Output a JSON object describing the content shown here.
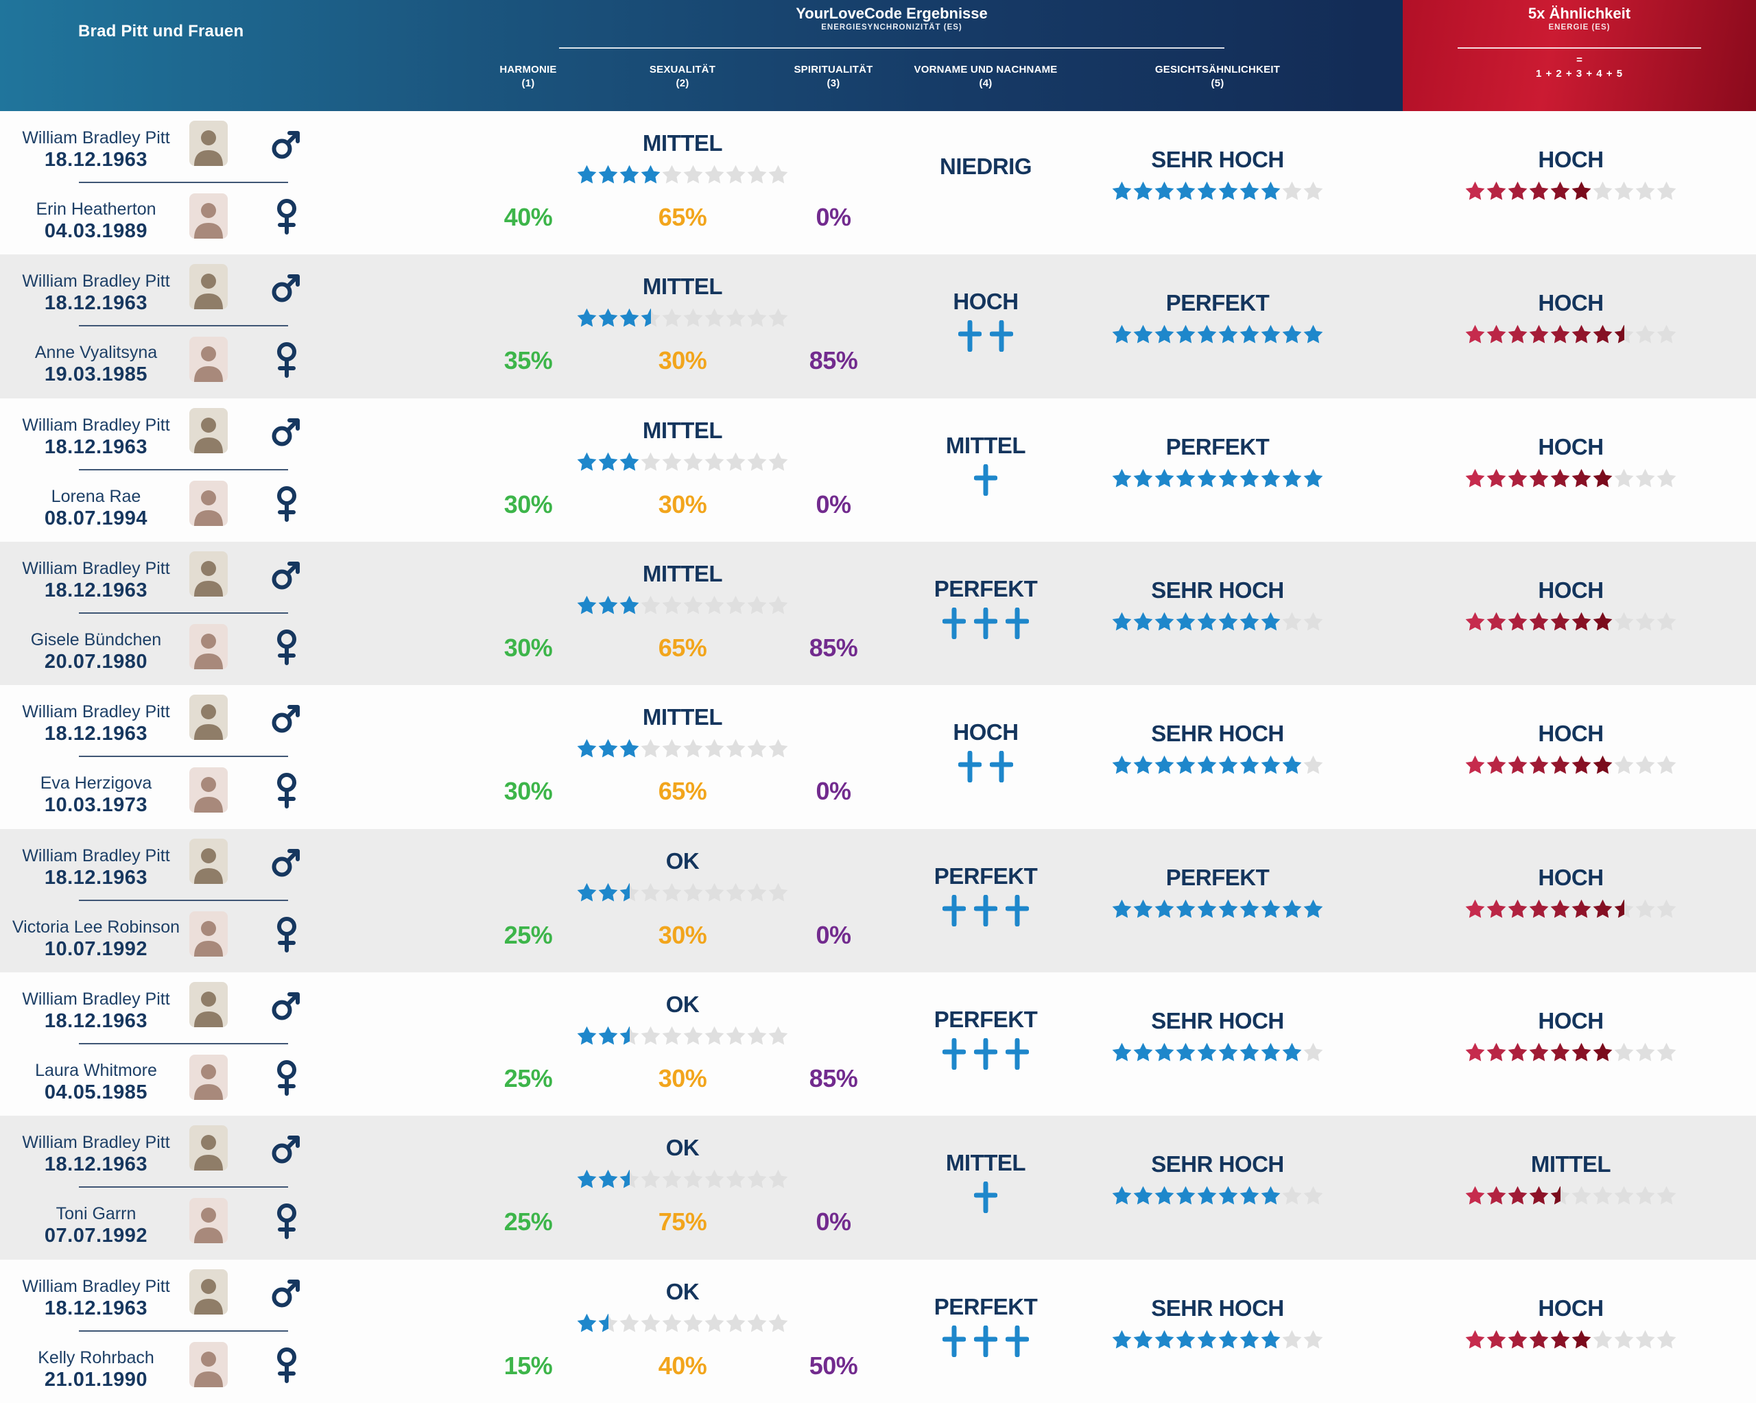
{
  "header": {
    "left_title": "Brad Pitt und Frauen",
    "center": {
      "title": "YourLoveCode Ergebnisse",
      "subtitle": "ENERGIESYNCHRONIZITÄT (ES)"
    },
    "columns": [
      {
        "label": "HARMONIE",
        "num": "(1)"
      },
      {
        "label": "SEXUALITÄT",
        "num": "(2)"
      },
      {
        "label": "SPIRITUALITÄT",
        "num": "(3)"
      },
      {
        "label": "VORNAME UND NACHNAME",
        "num": "(4)"
      },
      {
        "label": "GESICHTSÄHNLICHKEIT",
        "num": "(5)"
      }
    ],
    "right": {
      "title": "5x Ähnlichkeit",
      "subtitle": "ENERGIE (ES)",
      "equals": "=",
      "formula": "1 + 2 + 3 + 4 + 5"
    }
  },
  "male": {
    "name": "William Bradley Pitt",
    "birthdate": "18.12.1963"
  },
  "colors": {
    "navy_text": "#16375f",
    "label_navy": "#14355d",
    "green": "#3db54a",
    "orange": "#f2a51c",
    "purple": "#722b8e",
    "blue_star": "#1e87cb",
    "gray_star": "#dfdfdf",
    "red_star_start": "#c62b4d",
    "red_star_end": "#7a0b1c",
    "row_alt": "#ececec",
    "header_navy": "#132c56",
    "header_red": "#c11a30"
  },
  "chart_data": {
    "type": "table",
    "title": "Brad Pitt und Frauen — YourLoveCode Ergebnisse",
    "stars_max": 10,
    "rows": [
      {
        "female": {
          "name": "Erin Heatherton",
          "birthdate": "04.03.1989"
        },
        "harmonie_pct": "40%",
        "sexualitaet": {
          "label": "MITTEL",
          "stars": 4,
          "pct": "65%"
        },
        "spiritualitaet_pct": "0%",
        "vorname": {
          "label": "NIEDRIG",
          "plus": 0
        },
        "gesicht": {
          "label": "SEHR HOCH",
          "stars": 8
        },
        "aehnlichkeit": {
          "label": "HOCH",
          "stars": 6
        }
      },
      {
        "female": {
          "name": "Anne Vyalitsyna",
          "birthdate": "19.03.1985"
        },
        "harmonie_pct": "35%",
        "sexualitaet": {
          "label": "MITTEL",
          "stars": 3.5,
          "pct": "30%"
        },
        "spiritualitaet_pct": "85%",
        "vorname": {
          "label": "HOCH",
          "plus": 2
        },
        "gesicht": {
          "label": "PERFEKT",
          "stars": 10
        },
        "aehnlichkeit": {
          "label": "HOCH",
          "stars": 7.5
        }
      },
      {
        "female": {
          "name": "Lorena Rae",
          "birthdate": "08.07.1994"
        },
        "harmonie_pct": "30%",
        "sexualitaet": {
          "label": "MITTEL",
          "stars": 3,
          "pct": "30%"
        },
        "spiritualitaet_pct": "0%",
        "vorname": {
          "label": "MITTEL",
          "plus": 1
        },
        "gesicht": {
          "label": "PERFEKT",
          "stars": 10
        },
        "aehnlichkeit": {
          "label": "HOCH",
          "stars": 7
        }
      },
      {
        "female": {
          "name": "Gisele Bündchen",
          "birthdate": "20.07.1980"
        },
        "harmonie_pct": "30%",
        "sexualitaet": {
          "label": "MITTEL",
          "stars": 3,
          "pct": "65%"
        },
        "spiritualitaet_pct": "85%",
        "vorname": {
          "label": "PERFEKT",
          "plus": 3
        },
        "gesicht": {
          "label": "SEHR HOCH",
          "stars": 8
        },
        "aehnlichkeit": {
          "label": "HOCH",
          "stars": 7
        }
      },
      {
        "female": {
          "name": "Eva Herzigova",
          "birthdate": "10.03.1973"
        },
        "harmonie_pct": "30%",
        "sexualitaet": {
          "label": "MITTEL",
          "stars": 3,
          "pct": "65%"
        },
        "spiritualitaet_pct": "0%",
        "vorname": {
          "label": "HOCH",
          "plus": 2
        },
        "gesicht": {
          "label": "SEHR HOCH",
          "stars": 9
        },
        "aehnlichkeit": {
          "label": "HOCH",
          "stars": 7
        }
      },
      {
        "female": {
          "name": "Victoria Lee Robinson",
          "birthdate": "10.07.1992"
        },
        "harmonie_pct": "25%",
        "sexualitaet": {
          "label": "OK",
          "stars": 2.5,
          "pct": "30%"
        },
        "spiritualitaet_pct": "0%",
        "vorname": {
          "label": "PERFEKT",
          "plus": 3
        },
        "gesicht": {
          "label": "PERFEKT",
          "stars": 10
        },
        "aehnlichkeit": {
          "label": "HOCH",
          "stars": 7.5
        }
      },
      {
        "female": {
          "name": "Laura Whitmore",
          "birthdate": "04.05.1985"
        },
        "harmonie_pct": "25%",
        "sexualitaet": {
          "label": "OK",
          "stars": 2.5,
          "pct": "30%"
        },
        "spiritualitaet_pct": "85%",
        "vorname": {
          "label": "PERFEKT",
          "plus": 3
        },
        "gesicht": {
          "label": "SEHR HOCH",
          "stars": 9
        },
        "aehnlichkeit": {
          "label": "HOCH",
          "stars": 7
        }
      },
      {
        "female": {
          "name": "Toni Garrn",
          "birthdate": "07.07.1992"
        },
        "harmonie_pct": "25%",
        "sexualitaet": {
          "label": "OK",
          "stars": 2.5,
          "pct": "75%"
        },
        "spiritualitaet_pct": "0%",
        "vorname": {
          "label": "MITTEL",
          "plus": 1
        },
        "gesicht": {
          "label": "SEHR HOCH",
          "stars": 8
        },
        "aehnlichkeit": {
          "label": "MITTEL",
          "stars": 4.5
        }
      },
      {
        "female": {
          "name": "Kelly Rohrbach",
          "birthdate": "21.01.1990"
        },
        "harmonie_pct": "15%",
        "sexualitaet": {
          "label": "OK",
          "stars": 1.5,
          "pct": "40%"
        },
        "spiritualitaet_pct": "50%",
        "vorname": {
          "label": "PERFEKT",
          "plus": 3
        },
        "gesicht": {
          "label": "SEHR HOCH",
          "stars": 8
        },
        "aehnlichkeit": {
          "label": "HOCH",
          "stars": 6
        }
      }
    ]
  }
}
